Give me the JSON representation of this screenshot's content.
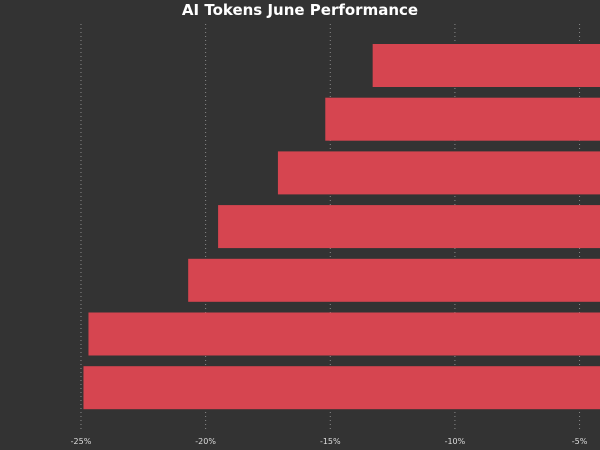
{
  "chart_data": {
    "type": "bar",
    "orientation": "horizontal",
    "title": "AI Tokens June Performance",
    "xlabel": "",
    "ylabel": "",
    "xlim": [
      -25.2,
      -4.1
    ],
    "x_ticks": [
      -25,
      -20,
      -15,
      -10,
      -5
    ],
    "x_tick_labels": [
      "-25%",
      "-20%",
      "-15%",
      "-10%",
      "-5%"
    ],
    "grid": true,
    "categories": [
      "",
      "",
      "",
      "",
      "",
      "",
      ""
    ],
    "values": [
      -13.3,
      -15.2,
      -17.1,
      -19.5,
      -20.7,
      -24.7,
      -24.9
    ],
    "colors": {
      "background": "#333333",
      "bar": "#d64550",
      "title": "#ffffff",
      "tick": "#dddddd",
      "grid": "#8a8a8a"
    }
  }
}
